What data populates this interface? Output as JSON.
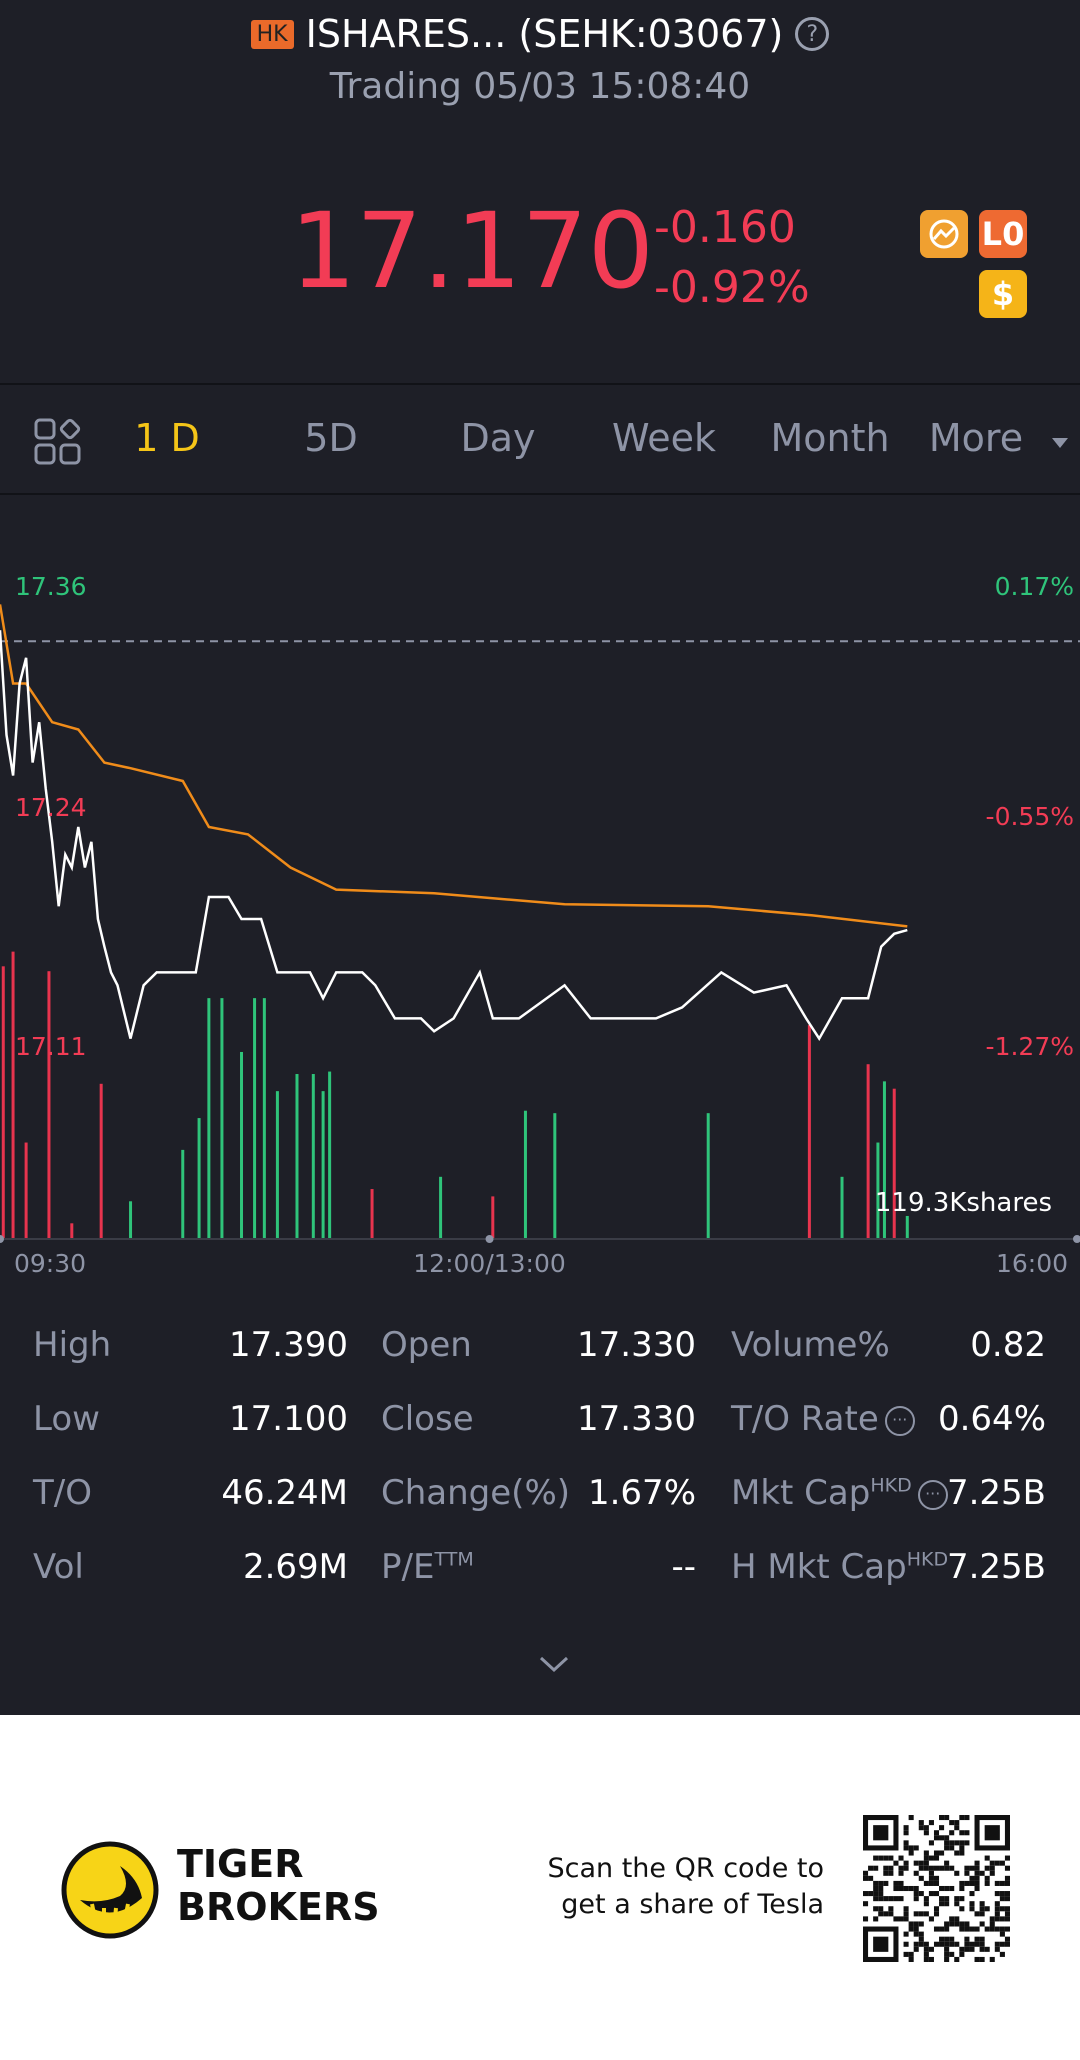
{
  "header": {
    "market": "HK",
    "title": "ISHARES... (SEHK:03067)",
    "status": "Trading 05/03 15:08:40"
  },
  "quote": {
    "price": "17.170",
    "change": "-0.160",
    "change_pct": "-0.92%",
    "level_icon": "L0",
    "currency_icon": "$"
  },
  "tabs": [
    "1 D",
    "5D",
    "Day",
    "Week",
    "Month",
    "More"
  ],
  "chart_data": [
    {
      "type": "line",
      "xlim": [
        0,
        330
      ],
      "xticks": [
        {
          "value": 0,
          "label": "09:30"
        },
        {
          "value": 150,
          "label": "12:00/13:00"
        },
        {
          "value": 330,
          "label": "16:00"
        }
      ],
      "ylim": [
        17.11,
        17.36
      ],
      "yticks": [
        17.36,
        17.24,
        17.11
      ],
      "y2lim": [
        -1.27,
        0.17
      ],
      "y2ticks": [
        {
          "value": 0.17,
          "label": "0.17%"
        },
        {
          "value": -0.55,
          "label": "-0.55%"
        },
        {
          "value": -1.27,
          "label": "-1.27%"
        }
      ],
      "prev_close": 17.33,
      "series": [
        {
          "color": "#ffffff",
          "x": [
            0,
            2,
            4,
            6,
            8,
            10,
            12,
            14,
            16,
            18,
            20,
            22,
            24,
            26,
            28,
            30,
            32,
            34,
            36,
            40,
            44,
            48,
            56,
            60,
            64,
            70,
            74,
            80,
            85,
            95,
            99,
            103,
            111,
            115,
            121,
            129,
            133,
            139,
            147,
            151,
            159,
            173,
            181,
            201,
            209,
            221,
            231,
            241,
            247,
            251,
            258,
            266,
            270,
            274,
            278
          ],
          "values": [
            17.336,
            17.279,
            17.257,
            17.307,
            17.321,
            17.264,
            17.286,
            17.25,
            17.221,
            17.186,
            17.214,
            17.207,
            17.229,
            17.207,
            17.221,
            17.179,
            17.164,
            17.15,
            17.143,
            17.114,
            17.143,
            17.15,
            17.15,
            17.15,
            17.191,
            17.191,
            17.179,
            17.179,
            17.15,
            17.15,
            17.136,
            17.15,
            17.15,
            17.143,
            17.125,
            17.125,
            17.118,
            17.125,
            17.15,
            17.125,
            17.125,
            17.143,
            17.125,
            17.125,
            17.131,
            17.15,
            17.139,
            17.143,
            17.125,
            17.114,
            17.136,
            17.136,
            17.164,
            17.171,
            17.173
          ]
        },
        {
          "color": "#f08c1a",
          "x": [
            0,
            4,
            8,
            16,
            24,
            32,
            40,
            56,
            64,
            76,
            89,
            103,
            133,
            173,
            217,
            249,
            278
          ],
          "values": [
            17.35,
            17.307,
            17.307,
            17.286,
            17.282,
            17.264,
            17.261,
            17.254,
            17.229,
            17.225,
            17.207,
            17.195,
            17.193,
            17.187,
            17.186,
            17.181,
            17.175
          ]
        }
      ]
    },
    {
      "type": "bar",
      "xlim": [
        0,
        330
      ],
      "ylim": [
        0,
        119300
      ],
      "yticks": [
        {
          "value": 119300,
          "label": "119.3Kshares"
        }
      ],
      "x": [
        1,
        4,
        8,
        15,
        22,
        31,
        40,
        56,
        61,
        64,
        68,
        74,
        78,
        81,
        85,
        91,
        96,
        99,
        101,
        114,
        135,
        151,
        161,
        170,
        217,
        248,
        258,
        266,
        269,
        271,
        274,
        278
      ],
      "values": [
        111000,
        117000,
        39000,
        109000,
        6000,
        63000,
        15000,
        36000,
        49000,
        98000,
        98000,
        76000,
        98000,
        98000,
        60000,
        67000,
        67000,
        60000,
        68000,
        20000,
        25000,
        17000,
        52000,
        51000,
        51000,
        87000,
        25000,
        71000,
        39000,
        64000,
        61000,
        9000
      ],
      "colors": [
        "#e8344e",
        "#e8344e",
        "#e8344e",
        "#e8344e",
        "#e8344e",
        "#e8344e",
        "#2fc47a",
        "#2fc47a",
        "#2fc47a",
        "#2fc47a",
        "#2fc47a",
        "#2fc47a",
        "#2fc47a",
        "#2fc47a",
        "#2fc47a",
        "#2fc47a",
        "#2fc47a",
        "#2fc47a",
        "#2fc47a",
        "#e8344e",
        "#2fc47a",
        "#e8344e",
        "#2fc47a",
        "#2fc47a",
        "#2fc47a",
        "#e8344e",
        "#2fc47a",
        "#e8344e",
        "#2fc47a",
        "#2fc47a",
        "#e8344e",
        "#2fc47a"
      ]
    }
  ],
  "stats": [
    [
      {
        "label": "High",
        "value": "17.390"
      },
      {
        "label": "Open",
        "value": "17.330"
      },
      {
        "label": "Volume%",
        "value": "0.82"
      }
    ],
    [
      {
        "label": "Low",
        "value": "17.100"
      },
      {
        "label": "Close",
        "value": "17.330"
      },
      {
        "label": "T/O Rate",
        "value": "0.64%"
      }
    ],
    [
      {
        "label": "T/O",
        "value": "46.24M"
      },
      {
        "label": "Change(%)",
        "value": "1.67%"
      },
      {
        "label": "Mkt Cap",
        "sup": "HKD",
        "value": "7.25B"
      }
    ],
    [
      {
        "label": "Vol",
        "value": "2.69M"
      },
      {
        "label": "P/E",
        "sup": "TTM",
        "value": "--"
      },
      {
        "label": "H Mkt Cap",
        "sup": "HKD",
        "value": "7.25B"
      }
    ]
  ],
  "footer": {
    "brand_line1": "TIGER",
    "brand_line2": "BROKERS",
    "promo_line1": "Scan the QR code to",
    "promo_line2": "get a share of Tesla"
  }
}
